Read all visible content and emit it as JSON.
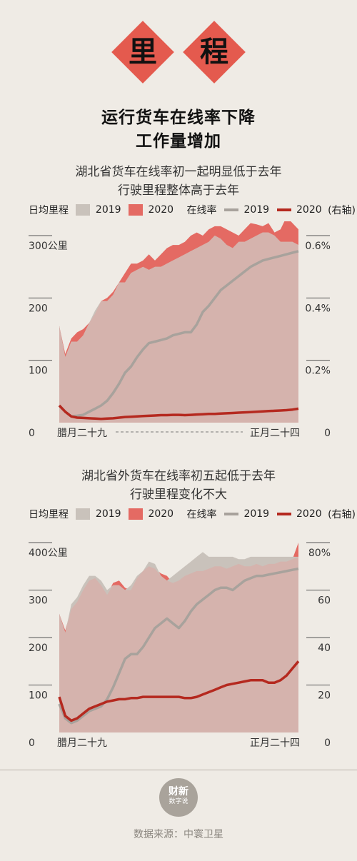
{
  "header": {
    "badge_chars": [
      "里",
      "程"
    ],
    "title_line1": "运行货车在线率下降",
    "title_line2": "工作量增加"
  },
  "colors": {
    "area_2019": "#c9c2bb",
    "area_2020": "#e46a63",
    "overlap": "#d5b3ad",
    "line_2019": "#a8a29c",
    "line_2020": "#b5291f",
    "badge": "#e45a4e"
  },
  "legend": {
    "mileage_label": "日均里程",
    "y2019": "2019",
    "y2020": "2020",
    "rate_label": "在线率",
    "right_axis": "(右轴)"
  },
  "chart_data": [
    {
      "type": "area",
      "title": "湖北省货车在线率初一起明显低于去年",
      "subtitle": "行驶里程整体高于去年",
      "x_tick_labels": {
        "start": "腊月二十九",
        "end": "正月二十四"
      },
      "y_left": {
        "ticks": [
          0,
          100,
          200,
          300
        ],
        "labels": [
          "0",
          "100",
          "200",
          "300公里"
        ],
        "range": [
          0,
          300
        ]
      },
      "y_right": {
        "ticks": [
          0,
          0.2,
          0.4,
          0.6
        ],
        "labels": [
          "0",
          "0.2%",
          "0.4%",
          "0.6%"
        ],
        "range": [
          0,
          0.6
        ]
      },
      "series": [
        {
          "name": "2019",
          "kind": "area",
          "axis": "left",
          "values": [
            155,
            105,
            130,
            130,
            140,
            160,
            180,
            195,
            195,
            205,
            225,
            225,
            240,
            245,
            250,
            245,
            250,
            250,
            255,
            260,
            265,
            270,
            275,
            280,
            285,
            290,
            300,
            295,
            285,
            280,
            290,
            290,
            295,
            300,
            305,
            305,
            300,
            290,
            290,
            290,
            285
          ]
        },
        {
          "name": "2020",
          "kind": "area",
          "axis": "left",
          "values": [
            155,
            110,
            135,
            145,
            150,
            160,
            175,
            195,
            200,
            210,
            225,
            240,
            255,
            255,
            260,
            270,
            260,
            270,
            280,
            285,
            285,
            290,
            300,
            305,
            300,
            310,
            315,
            315,
            310,
            305,
            300,
            310,
            320,
            318,
            315,
            320,
            305,
            310,
            330,
            320,
            310
          ]
        },
        {
          "name": "2019",
          "kind": "line",
          "axis": "right",
          "values": [
            0.055,
            0.035,
            0.02,
            0.022,
            0.025,
            0.035,
            0.045,
            0.055,
            0.07,
            0.095,
            0.125,
            0.16,
            0.18,
            0.21,
            0.235,
            0.255,
            0.26,
            0.265,
            0.27,
            0.28,
            0.285,
            0.29,
            0.29,
            0.315,
            0.355,
            0.375,
            0.4,
            0.425,
            0.44,
            0.455,
            0.47,
            0.485,
            0.5,
            0.51,
            0.52,
            0.525,
            0.53,
            0.535,
            0.54,
            0.545,
            0.55
          ]
        },
        {
          "name": "2020",
          "kind": "line",
          "axis": "right",
          "values": [
            0.055,
            0.035,
            0.02,
            0.016,
            0.015,
            0.014,
            0.013,
            0.012,
            0.013,
            0.014,
            0.016,
            0.018,
            0.019,
            0.02,
            0.021,
            0.022,
            0.023,
            0.024,
            0.024,
            0.025,
            0.025,
            0.024,
            0.025,
            0.026,
            0.027,
            0.028,
            0.028,
            0.029,
            0.03,
            0.031,
            0.032,
            0.033,
            0.034,
            0.035,
            0.036,
            0.037,
            0.038,
            0.039,
            0.04,
            0.042,
            0.045
          ]
        }
      ]
    },
    {
      "type": "area",
      "title": "湖北省外货车在线率初五起低于去年",
      "subtitle": "行驶里程变化不大",
      "x_tick_labels": {
        "start": "腊月二十九",
        "end": "正月二十四"
      },
      "y_left": {
        "ticks": [
          0,
          100,
          200,
          300,
          400
        ],
        "labels": [
          "0",
          "100",
          "200",
          "300",
          "400公里"
        ],
        "range": [
          0,
          400
        ]
      },
      "y_right": {
        "ticks": [
          0,
          20,
          40,
          60,
          80
        ],
        "labels": [
          "0",
          "20",
          "40",
          "60",
          "80%"
        ],
        "range": [
          0,
          80
        ]
      },
      "series": [
        {
          "name": "2019",
          "kind": "area",
          "axis": "left",
          "values": [
            250,
            210,
            270,
            285,
            310,
            330,
            330,
            320,
            300,
            310,
            310,
            300,
            310,
            330,
            340,
            360,
            355,
            330,
            320,
            330,
            340,
            350,
            360,
            370,
            380,
            370,
            370,
            370,
            370,
            370,
            365,
            365,
            370,
            370,
            370,
            370,
            370,
            370,
            370,
            370,
            370
          ]
        },
        {
          "name": "2020",
          "kind": "area",
          "axis": "left",
          "values": [
            250,
            215,
            260,
            275,
            300,
            320,
            325,
            310,
            290,
            315,
            320,
            305,
            300,
            325,
            340,
            350,
            345,
            335,
            330,
            315,
            320,
            330,
            335,
            340,
            340,
            345,
            350,
            350,
            345,
            350,
            355,
            350,
            350,
            355,
            350,
            355,
            355,
            360,
            360,
            365,
            400
          ]
        },
        {
          "name": "2019",
          "kind": "line",
          "axis": "right",
          "values": [
            12,
            6,
            4,
            5,
            7,
            9,
            10,
            11,
            14,
            19,
            25,
            31,
            33,
            33,
            36,
            40,
            44,
            46,
            48,
            46,
            44,
            47,
            51,
            54,
            56,
            58,
            60,
            61,
            61,
            60,
            62,
            64,
            65,
            66,
            66,
            66.5,
            67,
            67.5,
            68,
            68.5,
            69
          ]
        },
        {
          "name": "2020",
          "kind": "line",
          "axis": "right",
          "values": [
            15,
            7,
            5,
            6,
            8,
            10,
            11,
            12,
            13,
            13.5,
            14,
            14,
            14.5,
            14.5,
            15,
            15,
            15,
            15,
            15,
            15,
            15,
            14.5,
            14.5,
            15,
            16,
            17,
            18,
            19,
            20,
            20.5,
            21,
            21.5,
            22,
            22,
            22,
            21,
            21,
            22,
            24,
            27,
            30
          ]
        }
      ]
    }
  ],
  "footer": {
    "logo_line1": "财新",
    "logo_line2": "数字说",
    "source": "数据来源：中寰卫星"
  }
}
